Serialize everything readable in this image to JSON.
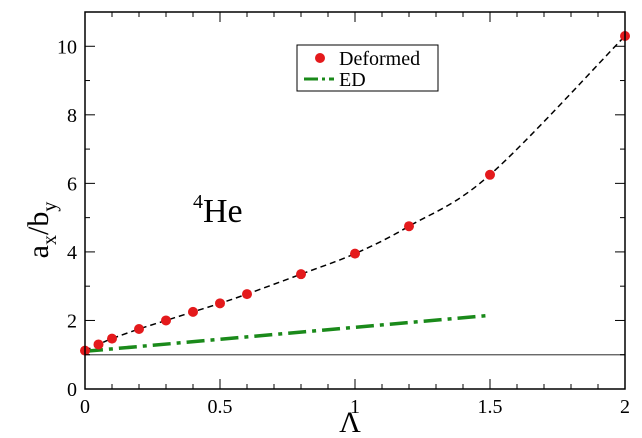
{
  "chart_data": {
    "type": "scatter",
    "xlabel": "Λ",
    "ylabel": {
      "main": "a",
      "sub_x": "x",
      "slash": "/b",
      "sub_y": "y"
    },
    "xlim": [
      0,
      2
    ],
    "ylim": [
      0,
      11
    ],
    "x_ticks": [
      "0",
      "0.5",
      "1",
      "1.5",
      "2"
    ],
    "y_ticks": [
      "0",
      "2",
      "4",
      "6",
      "8",
      "10"
    ],
    "grid": false,
    "legend_position": "top-right",
    "annotation": {
      "sup": "4",
      "text": "He"
    },
    "series": [
      {
        "name": "Deformed",
        "style": "points",
        "color": "#e41a1c",
        "x": [
          0,
          0.05,
          0.1,
          0.2,
          0.3,
          0.4,
          0.5,
          0.6,
          0.8,
          1.0,
          1.2,
          1.5,
          2.0
        ],
        "y": [
          1.12,
          1.3,
          1.47,
          1.75,
          2.0,
          2.25,
          2.5,
          2.77,
          3.35,
          3.95,
          4.75,
          6.25,
          10.3
        ]
      },
      {
        "name": "ED",
        "style": "dash-dot",
        "color": "#1a8a1a",
        "x": [
          0,
          1.5
        ],
        "y": [
          1.1,
          2.15
        ]
      },
      {
        "style": "dashed",
        "color": "#000000",
        "x": [
          0,
          0.05,
          0.1,
          0.2,
          0.3,
          0.4,
          0.5,
          0.6,
          0.8,
          1.0,
          1.2,
          1.5,
          2.0
        ],
        "y": [
          1.12,
          1.3,
          1.47,
          1.75,
          2.0,
          2.25,
          2.5,
          2.77,
          3.35,
          3.95,
          4.75,
          6.25,
          10.3
        ]
      },
      {
        "style": "solid-thin",
        "color": "#555555",
        "x": [
          0,
          2
        ],
        "y": [
          1,
          1
        ]
      }
    ]
  }
}
